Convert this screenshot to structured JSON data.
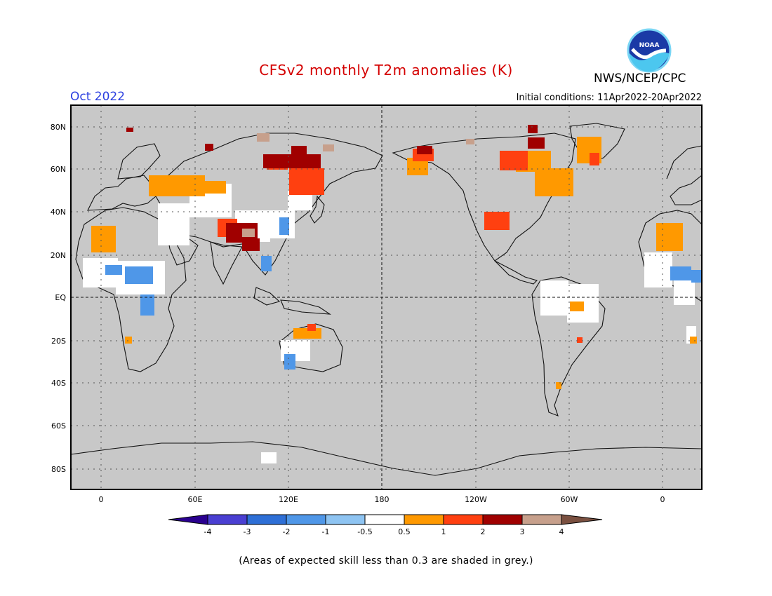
{
  "header": {
    "title": "CFSv2 monthly T2m anomalies (K)",
    "org": "NWS/NCEP/CPC",
    "month": "Oct 2022",
    "initial_conditions": "Initial conditions: 11Apr2022-20Apr2022",
    "logo_text": "NOAA"
  },
  "map": {
    "lat_labels": [
      "80N",
      "60N",
      "40N",
      "20N",
      "EQ",
      "20S",
      "40S",
      "60S",
      "80S"
    ],
    "lon_labels": [
      "0",
      "60E",
      "120E",
      "180",
      "120W",
      "60W",
      "0"
    ],
    "no_skill_color": "#c8c8c8",
    "grid_style": "dotted"
  },
  "colorbar": {
    "ticks": [
      "-4",
      "-3",
      "-2",
      "-1",
      "-0.5",
      "0.5",
      "1",
      "2",
      "3",
      "4"
    ],
    "colors": [
      "#2a008f",
      "#4a3fd2",
      "#2e6fd6",
      "#4f97e8",
      "#8ec4f2",
      "#ffffff",
      "#ff9900",
      "#ff4010",
      "#a00000",
      "#c7a08c",
      "#7a5040"
    ]
  },
  "footnote": "(Areas of expected skill less than 0.3 are shaded in grey.)"
}
